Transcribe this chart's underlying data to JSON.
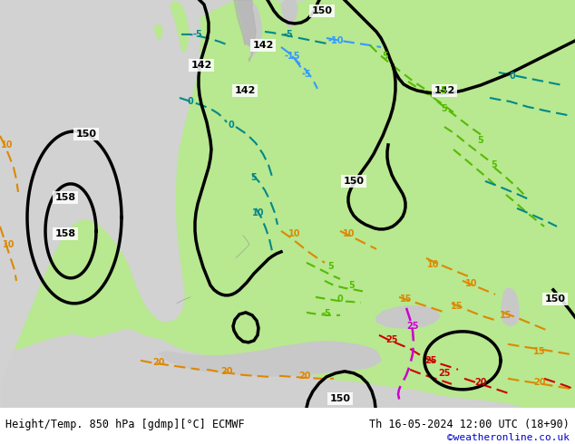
{
  "title_left": "Height/Temp. 850 hPa [gdmp][°C] ECMWF",
  "title_right": "Th 16-05-2024 12:00 UTC (18+90)",
  "credit": "©weatheronline.co.uk",
  "bg_color": "#b8d8a0",
  "sea_color": "#d0d0d0",
  "land_green_color": "#b8e890",
  "text_color_bottom": "#000000",
  "credit_color": "#0000cc",
  "bottom_bar_color": "#ffffff",
  "fig_width": 6.34,
  "fig_height": 4.9,
  "dpi": 100,
  "map_extent": [
    -25,
    45,
    30,
    72
  ],
  "black_contours": {
    "lw": 2.2,
    "color": "black"
  },
  "temp_colors": {
    "neg": "#008888",
    "blue": "#0066ff",
    "green": "#66cc00",
    "orange": "#dd8800",
    "red": "#cc0000",
    "magenta": "#cc00cc"
  }
}
